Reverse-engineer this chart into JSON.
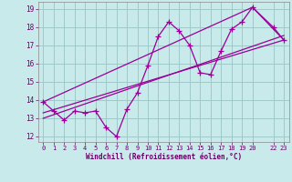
{
  "xlabel": "Windchill (Refroidissement éolien,°C)",
  "bg_color": "#c8eaea",
  "grid_color": "#a0c8c8",
  "line_color": "#990099",
  "xlim": [
    -0.5,
    23.5
  ],
  "ylim": [
    11.7,
    19.4
  ],
  "xticks": [
    0,
    1,
    2,
    3,
    4,
    5,
    6,
    7,
    8,
    9,
    10,
    11,
    12,
    13,
    14,
    15,
    16,
    17,
    18,
    19,
    20,
    22,
    23
  ],
  "yticks": [
    12,
    13,
    14,
    15,
    16,
    17,
    18,
    19
  ],
  "data_x": [
    0,
    1,
    2,
    3,
    4,
    5,
    6,
    7,
    8,
    9,
    10,
    11,
    12,
    13,
    14,
    15,
    16,
    17,
    18,
    19,
    20,
    22,
    23
  ],
  "data_y": [
    13.9,
    13.4,
    12.9,
    13.4,
    13.3,
    13.4,
    12.5,
    12.0,
    13.5,
    14.4,
    15.9,
    17.5,
    18.3,
    17.8,
    17.0,
    15.5,
    15.4,
    16.7,
    17.9,
    18.3,
    19.1,
    18.0,
    17.3
  ],
  "trend1_x": [
    0,
    23
  ],
  "trend1_y": [
    13.3,
    17.3
  ],
  "trend2_x": [
    0,
    20,
    23
  ],
  "trend2_y": [
    13.9,
    19.1,
    17.3
  ],
  "trend3_x": [
    0,
    23
  ],
  "trend3_y": [
    13.0,
    17.55
  ]
}
